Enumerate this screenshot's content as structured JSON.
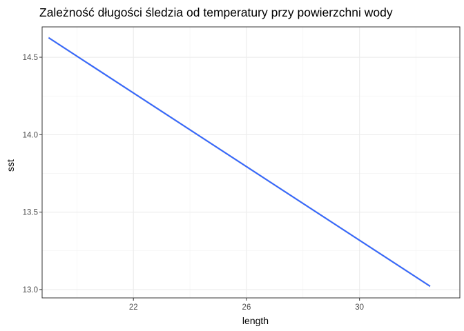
{
  "chart_data": {
    "type": "line",
    "title": "Zależność długości śledzia od temperatury przy powierzchni wody",
    "xlabel": "length",
    "ylabel": "sst",
    "xlim": [
      18.77,
      33.55
    ],
    "ylim": [
      12.946,
      14.696
    ],
    "x_ticks": [
      22,
      26,
      30
    ],
    "x_minor_ticks": [
      20,
      24,
      28,
      32
    ],
    "y_ticks": [
      13.0,
      13.5,
      14.0,
      14.5
    ],
    "y_tick_labels": [
      "13.0",
      "13.5",
      "14.0",
      "14.5"
    ],
    "y_minor_ticks": [
      13.25,
      13.75,
      14.25
    ],
    "grid": true,
    "series": [
      {
        "x": [
          19.0,
          32.5
        ],
        "y": [
          14.626,
          13.021
        ],
        "color": "#3366FF",
        "ribbon_color": "#999999",
        "confidence_band": true
      }
    ]
  }
}
